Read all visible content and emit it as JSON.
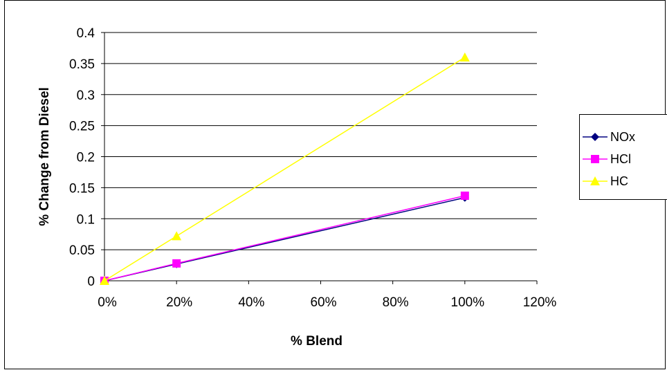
{
  "chart_data": {
    "type": "line",
    "title": "",
    "xlabel": "% Blend",
    "ylabel": "% Change from Diesel",
    "x_ticks": [
      "0%",
      "20%",
      "40%",
      "60%",
      "80%",
      "100%",
      "120%"
    ],
    "y_ticks": [
      "0",
      "0.05",
      "0.1",
      "0.15",
      "0.2",
      "0.25",
      "0.3",
      "0.35",
      "0.4"
    ],
    "xlim": [
      0,
      1.2
    ],
    "ylim": [
      0,
      0.4
    ],
    "grid": "horizontal",
    "legend_position": "right",
    "x": [
      0,
      0.2,
      1.0
    ],
    "series": [
      {
        "name": "NOx",
        "values": [
          0,
          0.027,
          0.134
        ],
        "color": "#000080",
        "marker": "diamond"
      },
      {
        "name": "HCl",
        "values": [
          0,
          0.028,
          0.137
        ],
        "color": "#FF00FF",
        "marker": "square"
      },
      {
        "name": "HC",
        "values": [
          0,
          0.072,
          0.36
        ],
        "color": "#FFFF00",
        "marker": "triangle"
      }
    ]
  }
}
